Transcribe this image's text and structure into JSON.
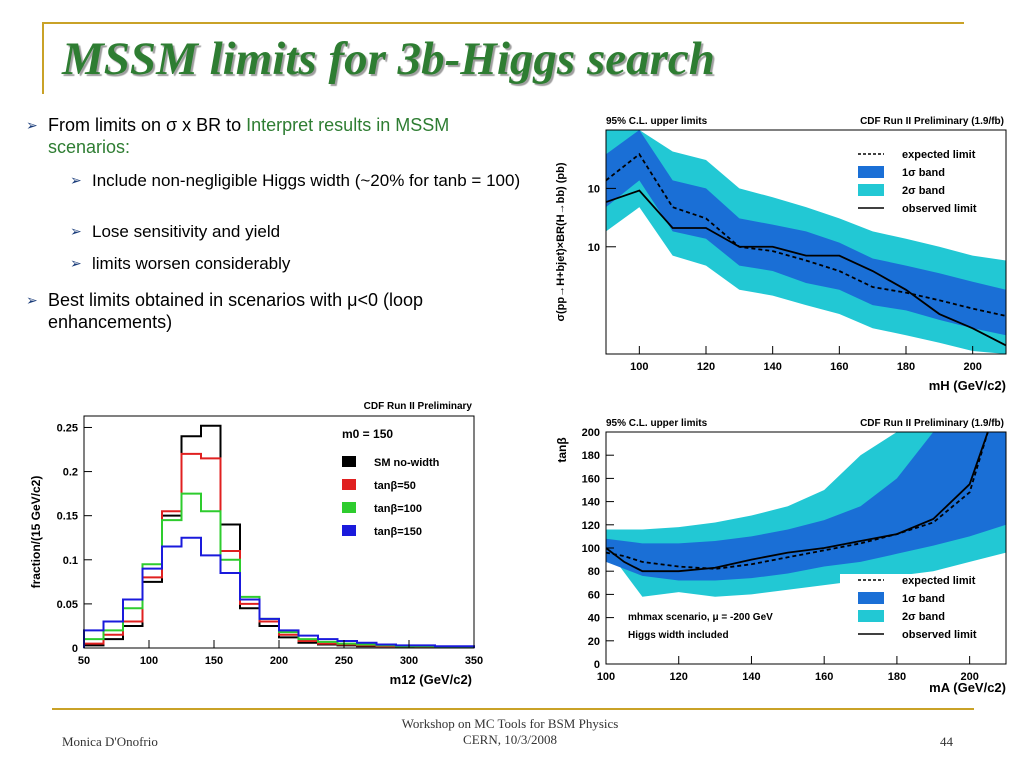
{
  "title": "MSSM limits for 3b-Higgs search",
  "bullets": {
    "b1_pre": "From limits on σ x BR to ",
    "b1_green": "Interpret results in MSSM scenarios:",
    "sub1": "Include non-negligible Higgs width (~20% for tanb = 100)",
    "sub2": "Lose sensitivity and yield",
    "sub3": "limits worsen considerably",
    "b2": "Best limits obtained in scenarios with μ<0 (loop enhancements)"
  },
  "footer": {
    "author": "Monica D'Onofrio",
    "event_line1": "Workshop on MC Tools for BSM Physics",
    "event_line2": "CERN, 10/3/2008",
    "page": "44"
  },
  "colors": {
    "band1": "#1a6fd6",
    "band2": "#22c8d4",
    "title": "#2e7d32",
    "rule": "#c9a227"
  },
  "chart_data": [
    {
      "type": "line",
      "header_left": "95% C.L. upper limits",
      "header_right": "CDF Run II Preliminary (1.9/fb)",
      "xlabel": "mH (GeV/c2)",
      "ylabel": "σ(pp→H+bjet)×BR(H→bb) (pb)",
      "xlim": [
        90,
        210
      ],
      "ylim": [
        2.8,
        40
      ],
      "log_y": true,
      "x_ticks": [
        "100",
        "120",
        "140",
        "160",
        "180",
        "200"
      ],
      "y_tick_labels": [
        "10",
        "10"
      ],
      "legend": [
        "expected limit",
        "1σ band",
        "2σ band",
        "observed limit"
      ],
      "x": [
        90,
        100,
        110,
        120,
        130,
        140,
        150,
        160,
        170,
        180,
        190,
        200,
        210
      ],
      "series": [
        {
          "name": "observed limit",
          "values": [
            17,
            19.5,
            12.5,
            12.5,
            10,
            10,
            9,
            9,
            7.5,
            6,
            4.5,
            3.8,
            3.1
          ]
        },
        {
          "name": "expected limit",
          "values": [
            22,
            30,
            16,
            14,
            10,
            9.5,
            8.5,
            7.5,
            6.2,
            5.8,
            5.3,
            4.8,
            4.4
          ]
        },
        {
          "name": "1σ band lower",
          "values": [
            16,
            22,
            12,
            11,
            8,
            7.5,
            6.5,
            6,
            5,
            4.7,
            4.2,
            3.8,
            3.5
          ]
        },
        {
          "name": "1σ band upper",
          "values": [
            30,
            40,
            22,
            20,
            14,
            13,
            12,
            10.5,
            8.7,
            8,
            7.3,
            6.6,
            6
          ]
        },
        {
          "name": "2σ band lower",
          "values": [
            12,
            16,
            9,
            8,
            6,
            5.6,
            5,
            4.5,
            3.8,
            3.5,
            3.2,
            2.9,
            2.8
          ]
        },
        {
          "name": "2σ band upper",
          "values": [
            40,
            40,
            31,
            28,
            20,
            18,
            16,
            14,
            12,
            11,
            10,
            9,
            8.5
          ]
        }
      ]
    },
    {
      "type": "bar",
      "header_right": "CDF Run II Preliminary",
      "annotation": "m0 = 150",
      "xlabel": "m12 (GeV/c2)",
      "ylabel": "fraction/(15 GeV/c2)",
      "xlim": [
        50,
        350
      ],
      "ylim": [
        0,
        0.25
      ],
      "x_ticks": [
        "50",
        "100",
        "150",
        "200",
        "250",
        "300",
        "350"
      ],
      "y_ticks": [
        "0",
        "0.05",
        "0.1",
        "0.15",
        "0.2",
        "0.25"
      ],
      "bin_edges": [
        50,
        65,
        80,
        95,
        110,
        125,
        140,
        155,
        170,
        185,
        200,
        215,
        230,
        245,
        260,
        275,
        290,
        305,
        320,
        335,
        350
      ],
      "series": [
        {
          "name": "SM no-width",
          "color": "#000000",
          "values": [
            0.003,
            0.01,
            0.025,
            0.075,
            0.15,
            0.24,
            0.252,
            0.14,
            0.045,
            0.025,
            0.012,
            0.006,
            0.004,
            0.003,
            0.002,
            0.002,
            0.001,
            0.001,
            0.001,
            0.001
          ]
        },
        {
          "name": "tanβ=50",
          "color": "#e02020",
          "values": [
            0.005,
            0.015,
            0.03,
            0.08,
            0.155,
            0.22,
            0.215,
            0.11,
            0.05,
            0.03,
            0.015,
            0.008,
            0.005,
            0.004,
            0.003,
            0.002,
            0.002,
            0.001,
            0.001,
            0.001
          ]
        },
        {
          "name": "tanβ=100",
          "color": "#2ecc2e",
          "values": [
            0.01,
            0.02,
            0.045,
            0.095,
            0.145,
            0.175,
            0.155,
            0.1,
            0.058,
            0.033,
            0.018,
            0.01,
            0.007,
            0.005,
            0.004,
            0.003,
            0.002,
            0.002,
            0.001,
            0.001
          ]
        },
        {
          "name": "tanβ=150",
          "color": "#1a1adc",
          "values": [
            0.02,
            0.03,
            0.055,
            0.09,
            0.115,
            0.125,
            0.105,
            0.085,
            0.055,
            0.033,
            0.02,
            0.014,
            0.01,
            0.008,
            0.006,
            0.004,
            0.003,
            0.003,
            0.002,
            0.002
          ]
        }
      ]
    },
    {
      "type": "line",
      "header_left": "95% C.L. upper limits",
      "header_right": "CDF Run II Preliminary (1.9/fb)",
      "xlabel": "mA (GeV/c2)",
      "ylabel": "tanβ",
      "xlim": [
        100,
        210
      ],
      "ylim": [
        0,
        200
      ],
      "x_ticks": [
        "100",
        "120",
        "140",
        "160",
        "180",
        "200"
      ],
      "y_ticks": [
        "0",
        "20",
        "40",
        "60",
        "80",
        "100",
        "120",
        "140",
        "160",
        "180",
        "200"
      ],
      "legend": [
        "expected limit",
        "1σ band",
        "2σ band",
        "observed limit"
      ],
      "annotation1": "mhmax scenario, μ = -200 GeV",
      "annotation2": "Higgs width included",
      "series": [
        {
          "name": "observed limit",
          "x": [
            100,
            105,
            110,
            120,
            130,
            140,
            150,
            160,
            170,
            180,
            190,
            200,
            205
          ],
          "values": [
            100,
            88,
            80,
            80,
            83,
            90,
            96,
            100,
            106,
            112,
            125,
            155,
            200
          ]
        },
        {
          "name": "expected limit",
          "x": [
            100,
            105,
            110,
            120,
            130,
            140,
            150,
            160,
            170,
            180,
            190,
            200,
            205
          ],
          "values": [
            96,
            93,
            88,
            84,
            82,
            86,
            92,
            98,
            104,
            112,
            122,
            148,
            200
          ]
        },
        {
          "name": "1σ lower",
          "x": [
            100,
            110,
            120,
            130,
            140,
            150,
            160,
            170,
            180,
            190,
            200,
            210
          ],
          "values": [
            88,
            76,
            72,
            72,
            74,
            78,
            84,
            88,
            95,
            102,
            110,
            120
          ]
        },
        {
          "name": "1σ upper",
          "x": [
            100,
            110,
            120,
            130,
            140,
            150,
            160,
            170,
            180,
            190,
            200,
            210
          ],
          "values": [
            108,
            104,
            104,
            106,
            110,
            116,
            124,
            136,
            160,
            200,
            200,
            200
          ]
        },
        {
          "name": "2σ lower",
          "x": [
            100,
            110,
            120,
            130,
            140,
            150,
            160,
            170,
            180,
            190,
            200,
            210
          ],
          "values": [
            100,
            58,
            62,
            58,
            60,
            64,
            68,
            72,
            76,
            80,
            88,
            96
          ]
        },
        {
          "name": "2σ upper",
          "x": [
            100,
            110,
            120,
            130,
            140,
            150,
            160,
            170,
            180,
            190,
            200,
            210
          ],
          "values": [
            116,
            116,
            118,
            122,
            128,
            136,
            150,
            180,
            200,
            200,
            200,
            200
          ]
        }
      ]
    }
  ]
}
